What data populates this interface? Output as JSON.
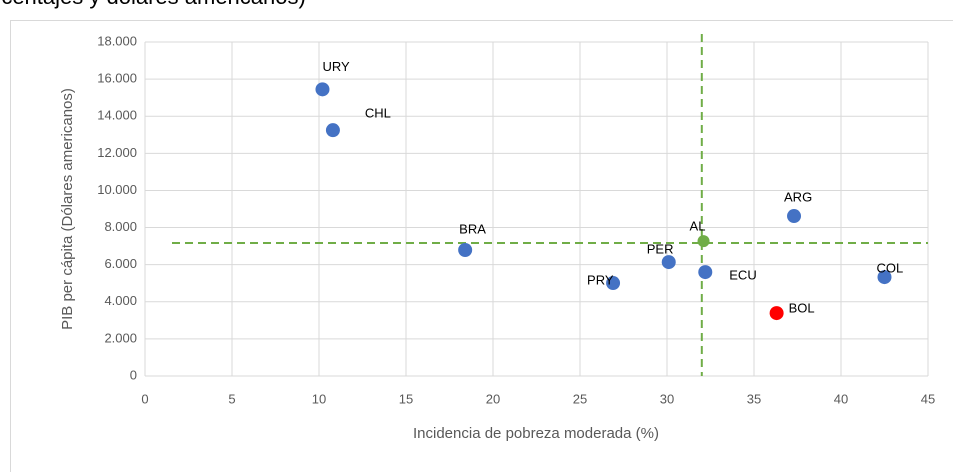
{
  "chart_data": {
    "type": "scatter",
    "title": "rcentajes y dólares americanos)",
    "xlabel": "Incidencia de pobreza moderada (%)",
    "ylabel": "PIB per cápita (Dólares americanos)",
    "series": [
      {
        "labels": [
          "URY",
          "CHL",
          "BRA",
          "PRY",
          "PER",
          "ECU",
          "AL",
          "ARG",
          "COL",
          "BOL"
        ],
        "x": [
          10.2,
          10.8,
          18.4,
          26.9,
          30.1,
          32.2,
          32.1,
          37.3,
          42.5,
          36.3
        ],
        "values": [
          15450,
          13250,
          6790,
          5010,
          6140,
          5600,
          7270,
          8620,
          5330,
          3390
        ],
        "colors": [
          "#4472c4",
          "#4472c4",
          "#4472c4",
          "#4472c4",
          "#4472c4",
          "#4472c4",
          "#70ad47",
          "#4472c4",
          "#4472c4",
          "#ff0000"
        ]
      }
    ],
    "reference_lines": {
      "x": 32,
      "y": 7170,
      "color": "#70ad47"
    },
    "xlim": [
      0,
      45
    ],
    "xticks": [
      0,
      5,
      10,
      15,
      20,
      25,
      30,
      35,
      40,
      45
    ],
    "ylim": [
      0,
      18000
    ],
    "yticks": [
      0,
      {
        "value": 2000,
        "label": "2.000"
      },
      {
        "value": 4000,
        "label": "4.000"
      },
      {
        "value": 6000,
        "label": "6.000"
      },
      {
        "value": 8000,
        "label": "8.000"
      },
      {
        "value": 10000,
        "label": "10.000"
      },
      {
        "value": 12000,
        "label": "12.000"
      },
      {
        "value": 14000,
        "label": "14.000"
      },
      {
        "value": 16000,
        "label": "16.000"
      },
      {
        "value": 18000,
        "label": "18.000"
      }
    ],
    "grid": true
  }
}
